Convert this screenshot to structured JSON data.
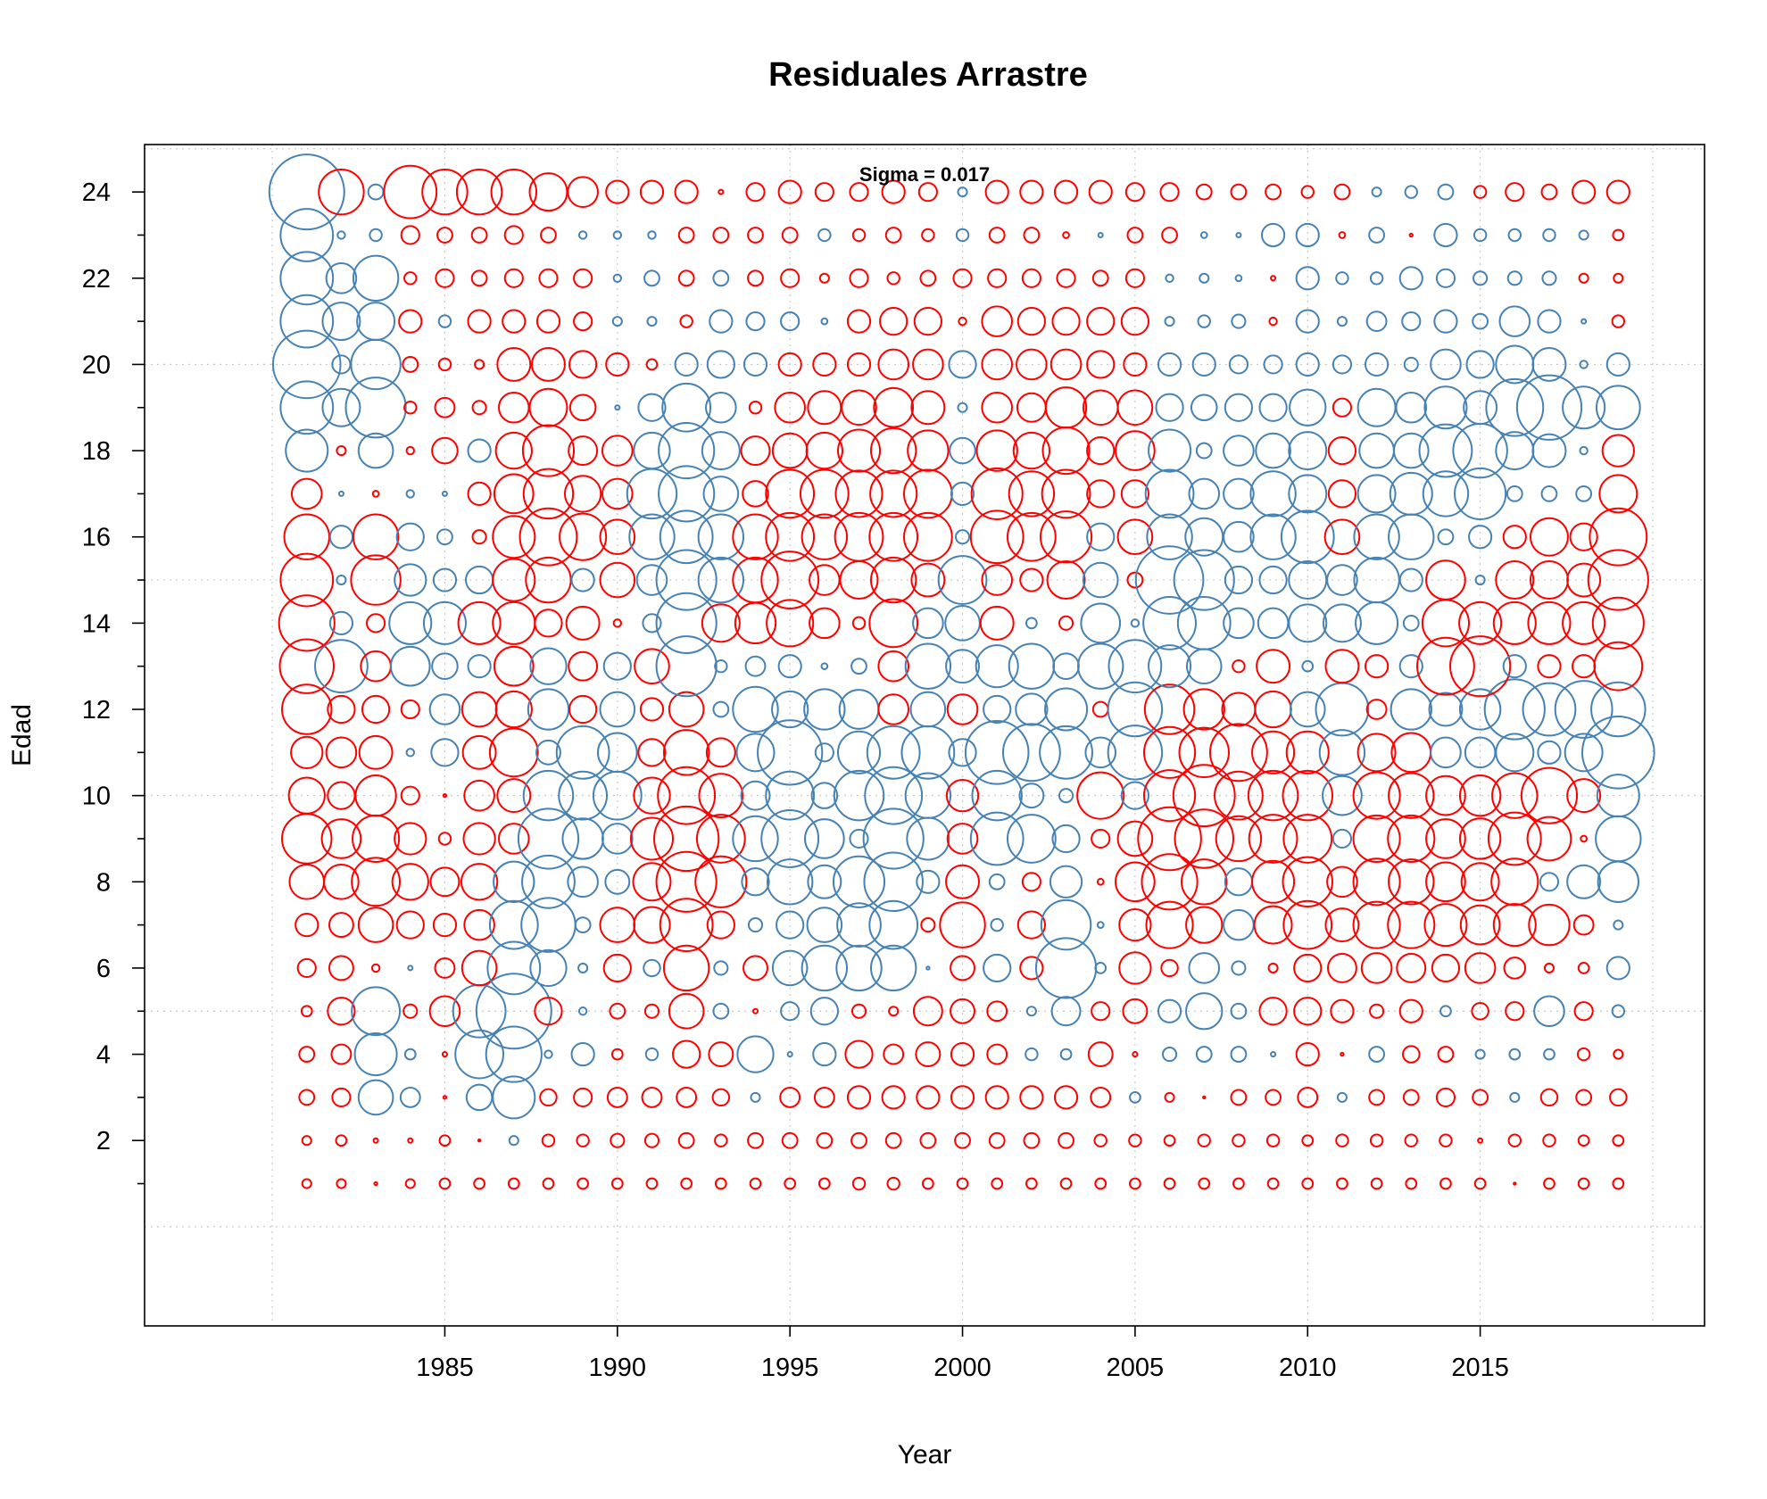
{
  "chart_data": {
    "type": "scatter",
    "subtype": "bubble",
    "title": "Residuales Arrastre",
    "xlabel": "Year",
    "ylabel": "Edad",
    "annotation": "Sigma =  0.017",
    "xlim": [
      1976.3,
      2021.5
    ],
    "ylim": [
      -2.3,
      25.1
    ],
    "x_ticks": [
      1985,
      1990,
      1995,
      2000,
      2005,
      2010,
      2015
    ],
    "x_tick_labels": [
      "1985",
      "1990",
      "1995",
      "2000",
      "2005",
      "2010",
      "2015"
    ],
    "y_ticks": [
      2,
      4,
      6,
      8,
      10,
      12,
      14,
      16,
      18,
      20,
      22,
      24
    ],
    "y_minor_ticks": [
      1,
      3,
      5,
      7,
      9,
      11,
      13,
      15,
      17,
      19,
      21,
      23
    ],
    "x_grid": [
      1980,
      1985,
      1990,
      1995,
      2000,
      2005,
      2010,
      2015,
      2020
    ],
    "y_grid": [
      0,
      5,
      10,
      15,
      20,
      25
    ],
    "grid": true,
    "colors": {
      "positive": "#ff0000",
      "negative": "#4682b4"
    },
    "years": [
      1981,
      1982,
      1983,
      1984,
      1985,
      1986,
      1987,
      1988,
      1989,
      1990,
      1991,
      1992,
      1993,
      1994,
      1995,
      1996,
      1997,
      1998,
      1999,
      2000,
      2001,
      2002,
      2003,
      2004,
      2005,
      2006,
      2007,
      2008,
      2009,
      2010,
      2011,
      2012,
      2013,
      2014,
      2015,
      2016,
      2017,
      2018,
      2019
    ],
    "ages": [
      1,
      2,
      3,
      4,
      5,
      6,
      7,
      8,
      9,
      10,
      11,
      12,
      13,
      14,
      15,
      16,
      17,
      18,
      19,
      20,
      21,
      22,
      23,
      24
    ],
    "residuals_by_age": {
      "24": [
        -5,
        3,
        -1,
        3.5,
        3,
        3,
        3,
        2.5,
        2,
        1.5,
        1.5,
        1.5,
        0.3,
        1.2,
        1.5,
        1.2,
        1.2,
        1.5,
        1.2,
        -0.6,
        1.5,
        1.5,
        1.5,
        1.5,
        1.2,
        1.2,
        1,
        1,
        1,
        0.8,
        1,
        -0.6,
        -0.8,
        -1,
        0.8,
        1.2,
        1,
        1.5,
        1.5
      ],
      "23": [
        -3.5,
        -0.5,
        -0.8,
        1.2,
        1,
        1,
        1.2,
        1,
        -0.5,
        -0.5,
        -0.5,
        1,
        1,
        1,
        1,
        -0.8,
        0.8,
        1,
        0.8,
        -0.8,
        1,
        1,
        0.4,
        -0.3,
        1,
        1,
        -0.4,
        -0.3,
        -1.5,
        -1.5,
        0.4,
        -1,
        0.2,
        -1.5,
        -0.8,
        -0.8,
        -0.8,
        -0.6,
        0.7
      ],
      "22": [
        -3.5,
        -2,
        -3,
        0.8,
        1.2,
        1,
        1.2,
        1.2,
        1.2,
        -0.5,
        -1,
        1,
        -1,
        1,
        1.2,
        0.6,
        1.2,
        0.8,
        1,
        1.2,
        1.2,
        1.2,
        1.2,
        1,
        1.2,
        -0.5,
        -0.6,
        -0.4,
        0.3,
        -1.5,
        -0.8,
        -0.8,
        -1.5,
        -1.2,
        -0.9,
        -0.9,
        -0.9,
        0.6,
        0.6
      ],
      "21": [
        -3.5,
        -2.5,
        -2.5,
        1.5,
        -0.8,
        1.5,
        1.5,
        1.5,
        1.2,
        -0.6,
        -0.6,
        0.8,
        -1.5,
        -1.2,
        -1.2,
        -0.4,
        1.5,
        1.8,
        1.8,
        0.5,
        2,
        1.8,
        1.8,
        1.8,
        1.8,
        -0.6,
        -0.8,
        -0.9,
        0.5,
        -1.5,
        -0.6,
        -1.3,
        -1.2,
        -1.5,
        -1,
        -2,
        -1.5,
        -0.3,
        0.8
      ],
      "20": [
        -4.5,
        -1.2,
        -3.3,
        1,
        0.8,
        0.6,
        2.2,
        2.2,
        1.8,
        1.5,
        0.7,
        -1.5,
        -1.8,
        -1.5,
        1.5,
        1.5,
        1.5,
        2,
        2,
        -1.8,
        2,
        2,
        2,
        1.8,
        1.5,
        -1.5,
        -1.5,
        -1.2,
        -1.2,
        -1.5,
        -1.2,
        -1.5,
        -0.9,
        -2,
        -1.8,
        -2.5,
        -2.2,
        -0.5,
        -1.5
      ],
      "19": [
        -3.5,
        -2.5,
        -4,
        0.8,
        1.3,
        0.9,
        2,
        2.5,
        1.7,
        -0.3,
        -1.8,
        -3.2,
        -2,
        0.8,
        2,
        2.2,
        2.3,
        2.6,
        2.2,
        -0.6,
        2,
        1.9,
        2.7,
        2.3,
        2.3,
        -1.8,
        -1.7,
        -1.8,
        -1.8,
        -2.4,
        1.2,
        -2.5,
        -2,
        -2.8,
        -2.2,
        -3.8,
        -4.3,
        -2.8,
        -2.9
      ],
      "18": [
        -2.8,
        0.6,
        -2.3,
        0.5,
        1.7,
        -1.5,
        2.4,
        3.4,
        1.9,
        2,
        -2.4,
        -3.7,
        -2.5,
        1.9,
        2.3,
        2.4,
        2.8,
        3,
        2.7,
        -1.7,
        2.7,
        2.4,
        3.1,
        1.8,
        2.6,
        -2.8,
        -1,
        -2,
        -2.3,
        -2.5,
        1.8,
        -2.3,
        -2.3,
        -3.5,
        -3.6,
        -2.5,
        -2.2,
        -0.5,
        2.1
      ],
      "17": [
        2,
        -0.3,
        0.4,
        -0.5,
        -0.3,
        1.5,
        2.6,
        3.3,
        2.4,
        2,
        -3.3,
        -3.7,
        -2.3,
        1.7,
        3.2,
        3.2,
        3.1,
        3.1,
        3.2,
        -1.5,
        3.4,
        3,
        3.2,
        1.8,
        1.8,
        -3.2,
        -2,
        -2,
        -3,
        -2.5,
        1.8,
        -2.5,
        -2.8,
        -3,
        -3.4,
        -1,
        -1,
        -1,
        2.5
      ],
      "16": [
        3,
        -1.5,
        3,
        -1.8,
        -1,
        0.9,
        2.8,
        3.8,
        3.1,
        2.3,
        -3,
        -3.5,
        -3,
        3,
        3.2,
        3,
        3.2,
        3.2,
        3.2,
        -0.9,
        3.5,
        3.2,
        3.4,
        -1.8,
        2.3,
        -3,
        -2.5,
        -2,
        -3,
        -3.5,
        2.3,
        -3,
        -3,
        -1,
        -1.5,
        1.5,
        2.5,
        1.8,
        3.8
      ],
      "15": [
        3.5,
        -0.6,
        3.3,
        -2.1,
        -1.5,
        -1.8,
        2.8,
        3,
        -1.5,
        2.3,
        -2,
        -4,
        -3,
        3,
        3.8,
        2,
        2.5,
        3,
        2.2,
        -3.2,
        2,
        1.5,
        2.5,
        -2.3,
        1,
        -4.5,
        -4,
        -1.8,
        -1.8,
        -2.5,
        -2,
        -3,
        -1.5,
        2.6,
        -0.6,
        2.5,
        2.5,
        2.2,
        4
      ],
      "14": [
        3.7,
        -1.5,
        1.2,
        -2.8,
        -2.8,
        2.8,
        2.8,
        1.8,
        2.2,
        0.5,
        -1.2,
        -4,
        2.5,
        2.7,
        3.1,
        2,
        0.8,
        3.2,
        -2,
        -2.3,
        2.2,
        -0.7,
        0.9,
        -2.6,
        -0.5,
        -3.5,
        -3.5,
        -2,
        -2,
        -2.5,
        -2.5,
        -2.8,
        -1,
        3.1,
        2.8,
        2.8,
        2.8,
        2.8,
        3.4
      ],
      "13": [
        3.6,
        -3.5,
        2,
        -2.6,
        -1.7,
        -1.5,
        2.6,
        -2.4,
        1.9,
        -1.8,
        2.3,
        -4,
        -0.8,
        -1.3,
        -1.5,
        -0.4,
        -1,
        2,
        -3,
        -2.2,
        -2.8,
        -3,
        -1.7,
        -3,
        -3.5,
        -2.8,
        -2.3,
        0.8,
        2.2,
        -0.7,
        2.2,
        1.5,
        -1.5,
        3.8,
        4,
        -1.5,
        1.5,
        1.5,
        3.2
      ],
      "12": [
        3.3,
        1.8,
        1.8,
        1.2,
        -2,
        2.3,
        2.4,
        -2.7,
        1.8,
        -2.3,
        1.5,
        2.3,
        -1,
        -3,
        -2.4,
        -2.7,
        -2.6,
        2,
        -2.3,
        2,
        -1.8,
        -2.1,
        -2.8,
        1,
        -3.6,
        3.3,
        2.7,
        2.2,
        2.4,
        -2.3,
        -3.5,
        1.3,
        -2.7,
        -2.2,
        -2.7,
        -4,
        -3.5,
        -3.8,
        -3.6
      ],
      "11": [
        2.1,
        2,
        2.2,
        -0.5,
        -1.8,
        2.2,
        3.2,
        -1.6,
        -3.5,
        -2.6,
        1.8,
        3,
        1.9,
        -2.5,
        -4.3,
        -1.2,
        -2.8,
        -3.5,
        -3.5,
        -1.8,
        -4.2,
        -3.8,
        -3.5,
        -2,
        -3.6,
        3.4,
        3.3,
        3.8,
        2.8,
        2.8,
        -3,
        2.5,
        2.6,
        -2,
        -2,
        -2.5,
        -1.5,
        -2.5,
        -4.8
      ],
      "10": [
        2.4,
        1.8,
        2.7,
        1.2,
        0.2,
        2,
        2.2,
        -3.3,
        -3.2,
        -3.2,
        2.4,
        3.8,
        2.9,
        -1.9,
        -3.2,
        -1.7,
        -3.3,
        -3.8,
        -3,
        2.1,
        -3.3,
        -1.6,
        -0.9,
        3.1,
        -1.8,
        3.4,
        4.1,
        3.2,
        3.3,
        3.3,
        -2.6,
        3.1,
        3,
        2.6,
        2.7,
        3,
        3.7,
        2.2,
        -2.8
      ],
      "9": [
        3.3,
        2.6,
        3.1,
        2.1,
        0.8,
        2.1,
        2,
        -4,
        -2.7,
        -2,
        2.8,
        4.3,
        3.2,
        -3,
        -3.8,
        -2.6,
        -1.2,
        -4,
        -2.8,
        2,
        -3.5,
        -3.2,
        -1.8,
        1.2,
        2.3,
        4.2,
        3.9,
        3,
        3.2,
        3.2,
        -1.2,
        3.1,
        3.1,
        2.6,
        2.7,
        3.5,
        2.9,
        0.4,
        -3
      ],
      "8": [
        2.3,
        2.3,
        3.2,
        2.4,
        1.9,
        2.4,
        -2.7,
        -3.5,
        -2,
        -1.6,
        2.5,
        4,
        3.4,
        -1.8,
        -3,
        -2.2,
        -3.4,
        -3.9,
        -1.5,
        2.2,
        -1,
        1.2,
        -2.1,
        0.4,
        2.6,
        3.7,
        3,
        -1.8,
        2.8,
        3.3,
        2,
        3.1,
        3,
        2.6,
        2.5,
        3.1,
        -1.2,
        -2.2,
        -2.7
      ],
      "7": [
        1.5,
        1.6,
        2.3,
        1.8,
        1.5,
        2,
        -3.2,
        -3.6,
        -1,
        2.3,
        2.4,
        3.5,
        1.8,
        -0.9,
        -1.8,
        -2.3,
        -2.9,
        -3.2,
        0.9,
        3,
        -0.8,
        1.8,
        -3.3,
        -0.4,
        2.1,
        3.1,
        2.4,
        -2,
        2.5,
        3.2,
        2.2,
        3.1,
        3.1,
        2.8,
        2.6,
        2.8,
        2.7,
        1.3,
        -0.6
      ],
      "6": [
        1.2,
        1.6,
        0.5,
        -0.3,
        1.3,
        2.3,
        -3.5,
        -2.4,
        -0.6,
        1.8,
        -1.1,
        3,
        -0.9,
        1.6,
        -2.3,
        -3,
        -3,
        -3,
        -0.2,
        1.6,
        -1.8,
        1.5,
        -4,
        -0.7,
        2.1,
        1.1,
        -2,
        -0.9,
        0.6,
        1.8,
        1.9,
        2,
        1.9,
        1.8,
        2,
        1.4,
        0.6,
        0.7,
        -1.5
      ],
      "5": [
        0.7,
        1.8,
        -3.2,
        0.9,
        2,
        -3.5,
        -5,
        1.8,
        -0.5,
        1,
        0.9,
        2.3,
        -1,
        0.3,
        -1.2,
        -1.8,
        0.9,
        0.6,
        1.9,
        1.6,
        1.3,
        -0.6,
        -1.9,
        1.2,
        1.6,
        -1.5,
        -2.4,
        -1,
        1.8,
        1.8,
        1.5,
        0.9,
        1.5,
        -0.7,
        1.1,
        1.2,
        -2,
        1.2,
        -0.8
      ],
      "4": [
        1,
        1.3,
        -2.8,
        -0.7,
        0.3,
        -3.2,
        -3.7,
        -0.5,
        -1.5,
        0.7,
        -0.8,
        1.8,
        1.6,
        -2.4,
        -0.3,
        -1.5,
        1.8,
        1.3,
        1.6,
        1.5,
        1.3,
        -0.8,
        -0.7,
        1.6,
        0.3,
        -0.9,
        -1,
        -1,
        -0.3,
        1.5,
        0.2,
        -1,
        1.1,
        1,
        -0.6,
        -0.7,
        -0.7,
        0.8,
        0.6
      ],
      "3": [
        1,
        1.2,
        -2.3,
        -1.3,
        0.2,
        -1.7,
        -2.8,
        1.1,
        1.2,
        1.3,
        1.3,
        1.3,
        1.1,
        -0.6,
        1.3,
        1.3,
        1.5,
        1.5,
        1.5,
        1.5,
        1.5,
        1.5,
        1.5,
        1.3,
        -0.7,
        0.6,
        0.1,
        1,
        1,
        1.3,
        -0.6,
        1,
        1,
        1.2,
        1,
        -0.6,
        1.1,
        1,
        1.1
      ],
      "2": [
        0.6,
        0.7,
        0.3,
        0.3,
        0.7,
        0.1,
        -0.6,
        0.8,
        0.8,
        0.9,
        0.9,
        1,
        0.8,
        1,
        1,
        1,
        1,
        1,
        1,
        1,
        1,
        1,
        1,
        0.8,
        0.8,
        0.7,
        0.8,
        0.8,
        0.8,
        0.7,
        0.8,
        0.8,
        0.8,
        0.8,
        0.3,
        0.8,
        0.8,
        0.7,
        0.7
      ],
      "1": [
        0.6,
        0.6,
        0.2,
        0.6,
        0.7,
        0.7,
        0.7,
        0.7,
        0.7,
        0.7,
        0.7,
        0.7,
        0.7,
        0.7,
        0.7,
        0.7,
        0.8,
        0.8,
        0.7,
        0.7,
        0.7,
        0.7,
        0.7,
        0.7,
        0.7,
        0.7,
        0.7,
        0.7,
        0.7,
        0.7,
        0.7,
        0.7,
        0.7,
        0.7,
        0.7,
        0.1,
        0.7,
        0.7,
        0.7
      ]
    }
  }
}
